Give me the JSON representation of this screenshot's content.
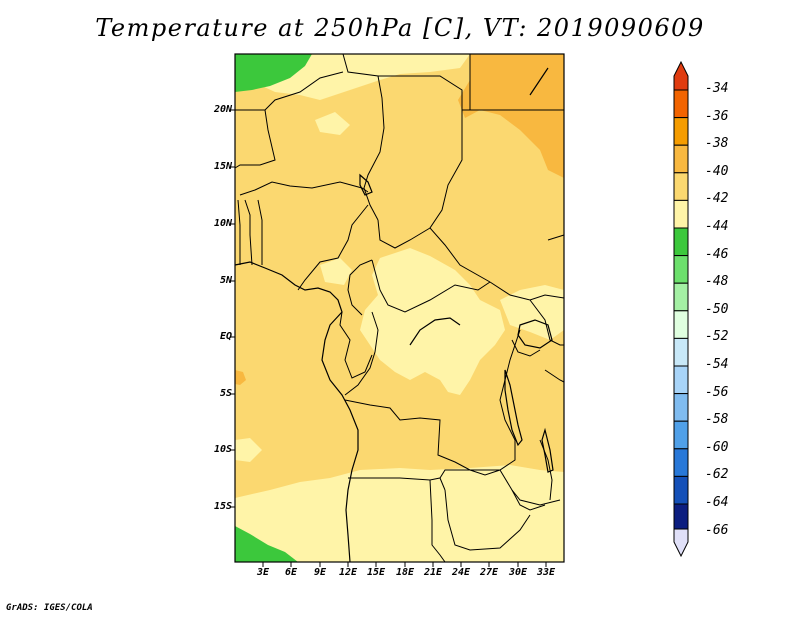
{
  "title": "Temperature at 250hPa [C], VT: 2019090609",
  "credit": "GrADS: IGES/COLA",
  "lat_labels": [
    "20N",
    "15N",
    "10N",
    "5N",
    "EQ",
    "5S",
    "10S",
    "15S"
  ],
  "lon_labels": [
    "3E",
    "6E",
    "9E",
    "12E",
    "15E",
    "18E",
    "21E",
    "24E",
    "27E",
    "30E",
    "33E"
  ],
  "colorbar": {
    "labels": [
      "-34",
      "-36",
      "-38",
      "-40",
      "-42",
      "-44",
      "-46",
      "-48",
      "-50",
      "-52",
      "-54",
      "-56",
      "-58",
      "-60",
      "-62",
      "-64",
      "-66"
    ],
    "colors": [
      "#e03c10",
      "#f26400",
      "#f59c00",
      "#f8b840",
      "#fbd870",
      "#fff4a8",
      "#3cc83c",
      "#6ce06c",
      "#a4f0a4",
      "#e0ffe0",
      "#c8e8f8",
      "#a8d4f8",
      "#80bcf0",
      "#50a0e8",
      "#2878d8",
      "#1450b8",
      "#0c1e80",
      "#e0e0f8"
    ]
  },
  "field_colors": {
    "level_m40": "#fbd870",
    "level_m38": "#f8b840",
    "level_m42": "#fff4a8",
    "level_m44": "#3cc83c"
  }
}
